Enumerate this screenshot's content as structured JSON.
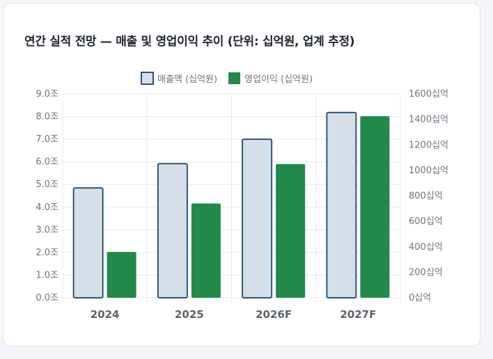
{
  "card": {
    "title": "연간 실적 전망 — 매출 및 영업이익 추이 (단위: 십억원, 업계 추정)"
  },
  "chart_data": {
    "type": "bar",
    "title": "연간 실적 전망 — 매출 및 영업이익 추이 (단위: 십억원, 업계 추정)",
    "categories": [
      "2024",
      "2025",
      "2026F",
      "2027F"
    ],
    "series": [
      {
        "name": "매출액 (십억원)",
        "axis": "left",
        "values": [
          4.85,
          5.92,
          7.0,
          8.18
        ],
        "unit": "조",
        "fill": "#d6dfe8",
        "stroke": "#2d5577"
      },
      {
        "name": "영업이익 (십억원)",
        "axis": "right",
        "values": [
          360,
          740,
          1050,
          1425
        ],
        "unit": "십억",
        "fill": "#218a4a",
        "stroke": "#218a4a"
      }
    ],
    "y_left": {
      "min": 0,
      "max": 9,
      "step": 1,
      "ticks": [
        "0.0조",
        "1.0조",
        "2.0조",
        "3.0조",
        "4.0조",
        "5.0조",
        "6.0조",
        "7.0조",
        "8.0조",
        "9.0조"
      ]
    },
    "y_right": {
      "min": 0,
      "max": 1600,
      "step": 200,
      "ticks": [
        "0십억",
        "200십억",
        "400십억",
        "600십억",
        "800십억",
        "1000십억",
        "1200십억",
        "1400십억",
        "1600십억"
      ]
    },
    "legend_position": "top",
    "grid": true
  }
}
